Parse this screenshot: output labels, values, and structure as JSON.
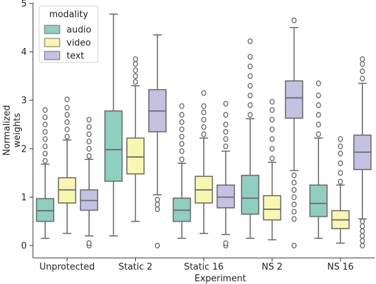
{
  "chart_data": {
    "type": "box",
    "xlabel": "Experiment",
    "ylabel": "Normalized weights",
    "ylim": [
      -0.2,
      5
    ],
    "yticks": [
      0,
      1,
      2,
      3,
      4,
      5
    ],
    "categories": [
      "Unprotected",
      "Static 2",
      "Static 16",
      "NS 2",
      "NS 16"
    ],
    "legend": {
      "title": "modality",
      "placement": "top-left"
    },
    "series": [
      {
        "name": "audio",
        "color": "#8ecfbf",
        "boxes": [
          {
            "whisker_low": 0.15,
            "q1": 0.5,
            "median": 0.72,
            "q3": 0.97,
            "whisker_high": 1.68,
            "outliers": [
              1.75,
              1.9,
              2.05,
              2.2,
              2.35,
              2.5,
              2.65,
              2.8
            ]
          },
          {
            "whisker_low": 0.2,
            "q1": 1.33,
            "median": 1.98,
            "q3": 2.78,
            "whisker_high": 4.78,
            "outliers": []
          },
          {
            "whisker_low": 0.15,
            "q1": 0.5,
            "median": 0.73,
            "q3": 0.98,
            "whisker_high": 1.7,
            "outliers": [
              1.78,
              1.95,
              2.1,
              2.25,
              2.4,
              2.55,
              2.7,
              2.88
            ]
          },
          {
            "whisker_low": 0.15,
            "q1": 0.65,
            "median": 0.98,
            "q3": 1.45,
            "whisker_high": 2.62,
            "outliers": [
              2.7,
              2.9,
              3.1,
              3.3,
              3.5,
              3.7,
              3.9,
              4.22
            ]
          },
          {
            "whisker_low": 0.15,
            "q1": 0.6,
            "median": 0.87,
            "q3": 1.25,
            "whisker_high": 2.22,
            "outliers": [
              2.3,
              2.5,
              2.7,
              2.9,
              3.1,
              3.35
            ]
          }
        ]
      },
      {
        "name": "video",
        "color": "#f7f7b0",
        "boxes": [
          {
            "whisker_low": 0.25,
            "q1": 0.88,
            "median": 1.15,
            "q3": 1.4,
            "whisker_high": 2.18,
            "outliers": [
              2.25,
              2.4,
              2.55,
              2.7,
              2.85,
              3.02
            ]
          },
          {
            "whisker_low": 0.5,
            "q1": 1.48,
            "median": 1.83,
            "q3": 2.22,
            "whisker_high": 3.3,
            "outliers": [
              3.38,
              3.5,
              3.62,
              3.75,
              3.85
            ]
          },
          {
            "whisker_low": 0.25,
            "q1": 0.88,
            "median": 1.15,
            "q3": 1.43,
            "whisker_high": 2.22,
            "outliers": [
              2.3,
              2.45,
              2.6,
              2.75,
              2.88,
              3.15
            ]
          },
          {
            "whisker_low": 0.12,
            "q1": 0.53,
            "median": 0.75,
            "q3": 1.03,
            "whisker_high": 1.72,
            "outliers": [
              1.8,
              2.0,
              2.2,
              2.4,
              2.6,
              2.8,
              2.97
            ]
          },
          {
            "whisker_low": 0.05,
            "q1": 0.35,
            "median": 0.53,
            "q3": 0.72,
            "whisker_high": 1.25,
            "outliers": [
              1.32,
              1.5,
              1.7,
              1.9,
              2.05,
              2.2
            ]
          }
        ]
      },
      {
        "name": "text",
        "color": "#c5c1e3",
        "boxes": [
          {
            "whisker_low": 0.2,
            "q1": 0.73,
            "median": 0.93,
            "q3": 1.15,
            "whisker_high": 1.78,
            "outliers": [
              0.0,
              0.05,
              1.85,
              2.0,
              2.15,
              2.3,
              2.45,
              2.6
            ]
          },
          {
            "whisker_low": 1.05,
            "q1": 2.35,
            "median": 2.78,
            "q3": 3.22,
            "whisker_high": 4.35,
            "outliers": [
              0.0,
              0.75,
              0.85,
              0.95
            ]
          },
          {
            "whisker_low": 0.23,
            "q1": 0.78,
            "median": 1.0,
            "q3": 1.25,
            "whisker_high": 1.95,
            "outliers": [
              0.0,
              0.05,
              2.05,
              2.2,
              2.35,
              2.5,
              2.7,
              2.93
            ]
          },
          {
            "whisker_low": 1.55,
            "q1": 2.63,
            "median": 3.05,
            "q3": 3.4,
            "whisker_high": 4.5,
            "outliers": [
              0.0,
              0.55,
              0.7,
              0.85,
              1.0,
              1.15,
              1.3,
              1.45,
              4.65
            ]
          },
          {
            "whisker_low": 0.55,
            "q1": 1.57,
            "median": 1.93,
            "q3": 2.28,
            "whisker_high": 3.35,
            "outliers": [
              0.0,
              0.1,
              0.2,
              0.3,
              0.4,
              0.5,
              3.45,
              3.6,
              3.75,
              3.85
            ]
          }
        ]
      }
    ]
  }
}
